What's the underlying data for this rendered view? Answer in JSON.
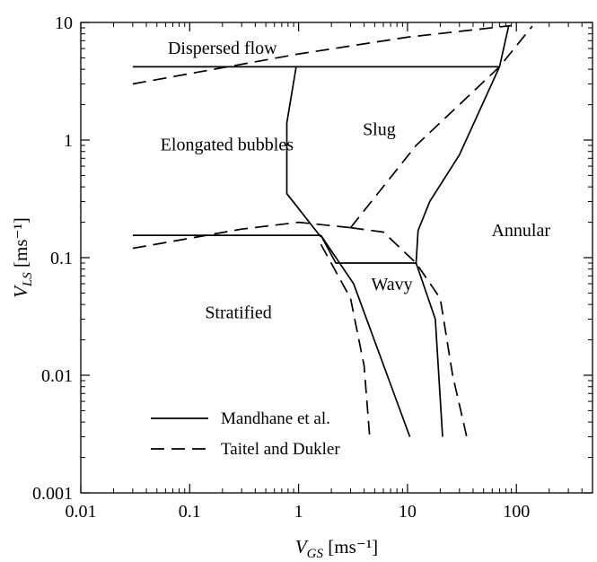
{
  "chart_data": {
    "type": "line",
    "title": "",
    "xlabel": {
      "var": "V",
      "sub": "GS",
      "unit": " [ms⁻¹]"
    },
    "ylabel": {
      "var": "V",
      "sub": "LS",
      "unit": " [ms⁻¹]"
    },
    "xscale": "log",
    "yscale": "log",
    "xlim": [
      0.01,
      500
    ],
    "ylim": [
      0.001,
      10
    ],
    "x_ticks": [
      {
        "value": 0.01,
        "label": "0.01"
      },
      {
        "value": 0.1,
        "label": "0.1"
      },
      {
        "value": 1,
        "label": "1"
      },
      {
        "value": 10,
        "label": "10"
      },
      {
        "value": 100,
        "label": "100"
      }
    ],
    "y_ticks": [
      {
        "value": 0.001,
        "label": "0.001"
      },
      {
        "value": 0.01,
        "label": "0.01"
      },
      {
        "value": 0.1,
        "label": "0.1"
      },
      {
        "value": 1,
        "label": "1"
      },
      {
        "value": 10,
        "label": "10"
      }
    ],
    "grid": false,
    "legend_position": "bottom-left",
    "legend": [
      {
        "label": "Mandhane et al.",
        "style": "solid"
      },
      {
        "label": "Taitel and Dukler",
        "style": "dashed"
      }
    ],
    "regions": [
      {
        "label": "Dispersed flow",
        "x": 0.2,
        "y": 5.4
      },
      {
        "label": "Slug",
        "x": 5.5,
        "y": 1.1
      },
      {
        "label": "Elongated bubbles",
        "x": 0.22,
        "y": 0.82
      },
      {
        "label": "Annular",
        "x": 110,
        "y": 0.152
      },
      {
        "label": "Wavy",
        "x": 7.2,
        "y": 0.053
      },
      {
        "label": "Stratified",
        "x": 0.28,
        "y": 0.0305
      }
    ],
    "series": [
      {
        "style": "solid",
        "points": [
          [
            0.03,
            4.2
          ],
          [
            70,
            4.2
          ]
        ]
      },
      {
        "style": "solid",
        "points": [
          [
            0.95,
            4.2
          ],
          [
            0.78,
            1.4
          ],
          [
            0.78,
            0.35
          ],
          [
            1.6,
            0.15
          ]
        ]
      },
      {
        "style": "solid",
        "points": [
          [
            0.03,
            0.155
          ],
          [
            1.6,
            0.155
          ]
        ]
      },
      {
        "style": "solid",
        "points": [
          [
            1.6,
            0.155
          ],
          [
            2.2,
            0.09
          ],
          [
            12,
            0.09
          ]
        ]
      },
      {
        "style": "solid",
        "points": [
          [
            70,
            4.2
          ],
          [
            85,
            9.4
          ]
        ]
      },
      {
        "style": "solid",
        "points": [
          [
            70,
            4.2
          ],
          [
            30,
            0.75
          ],
          [
            16,
            0.3
          ],
          [
            12.5,
            0.17
          ],
          [
            12,
            0.09
          ]
        ]
      },
      {
        "style": "solid",
        "points": [
          [
            1.6,
            0.155
          ],
          [
            3.2,
            0.06
          ],
          [
            10.5,
            0.003
          ]
        ]
      },
      {
        "style": "solid",
        "points": [
          [
            12,
            0.09
          ],
          [
            18,
            0.03
          ],
          [
            21,
            0.003
          ]
        ]
      },
      {
        "style": "dashed",
        "points": [
          [
            0.03,
            3.0
          ],
          [
            1.0,
            5.4
          ],
          [
            10,
            7.5
          ],
          [
            90,
            9.4
          ]
        ]
      },
      {
        "style": "dashed",
        "points": [
          [
            0.03,
            0.12
          ],
          [
            0.3,
            0.175
          ],
          [
            1.0,
            0.2
          ],
          [
            3.0,
            0.18
          ]
        ]
      },
      {
        "style": "dashed",
        "points": [
          [
            3.0,
            0.18
          ],
          [
            12,
            0.9
          ],
          [
            70,
            4.2
          ],
          [
            140,
            9.3
          ]
        ]
      },
      {
        "style": "dashed",
        "points": [
          [
            3.0,
            0.18
          ],
          [
            6.0,
            0.165
          ],
          [
            12,
            0.09
          ],
          [
            20,
            0.045
          ],
          [
            26,
            0.01
          ],
          [
            35,
            0.003
          ]
        ]
      },
      {
        "style": "dashed",
        "points": [
          [
            1.6,
            0.13
          ],
          [
            3.0,
            0.045
          ],
          [
            4.0,
            0.012
          ],
          [
            4.5,
            0.003
          ]
        ]
      }
    ]
  }
}
